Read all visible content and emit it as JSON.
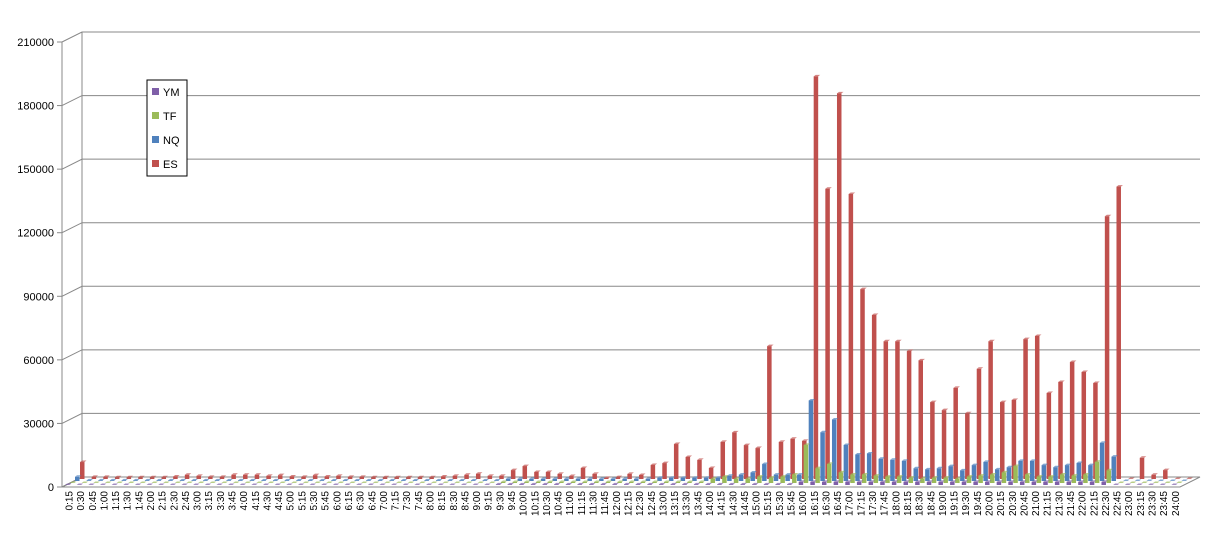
{
  "chart_data": {
    "type": "bar",
    "categories": [
      "0:15",
      "0:30",
      "0:45",
      "1:00",
      "1:15",
      "1:30",
      "1:45",
      "2:00",
      "2:15",
      "2:30",
      "2:45",
      "3:00",
      "3:15",
      "3:30",
      "3:45",
      "4:00",
      "4:15",
      "4:30",
      "4:45",
      "5:00",
      "5:15",
      "5:30",
      "5:45",
      "6:00",
      "6:15",
      "6:30",
      "6:45",
      "7:00",
      "7:15",
      "7:30",
      "7:45",
      "8:00",
      "8:15",
      "8:30",
      "8:45",
      "9:00",
      "9:15",
      "9:30",
      "9:45",
      "10:00",
      "10:15",
      "10:30",
      "10:45",
      "11:00",
      "11:15",
      "11:30",
      "11:45",
      "12:00",
      "12:15",
      "12:30",
      "12:45",
      "13:00",
      "13:15",
      "13:30",
      "13:45",
      "14:00",
      "14:15",
      "14:30",
      "14:45",
      "15:00",
      "15:15",
      "15:30",
      "15:45",
      "16:00",
      "16:15",
      "16:30",
      "16:45",
      "17:00",
      "17:15",
      "17:30",
      "17:45",
      "18:00",
      "18:15",
      "18:30",
      "18:45",
      "19:00",
      "19:15",
      "19:30",
      "19:45",
      "20:00",
      "20:15",
      "20:30",
      "20:45",
      "21:00",
      "21:15",
      "21:30",
      "21:45",
      "22:00",
      "22:15",
      "22:30",
      "22:45",
      "23:00",
      "23:15",
      "23:30",
      "23:45",
      "24:00"
    ],
    "series": [
      {
        "name": "YM",
        "color": "#7f5fa8",
        "values": [
          0,
          0,
          0,
          0,
          0,
          0,
          0,
          0,
          0,
          0,
          0,
          0,
          0,
          0,
          0,
          0,
          0,
          0,
          0,
          0,
          0,
          0,
          0,
          0,
          0,
          0,
          0,
          0,
          0,
          0,
          0,
          0,
          0,
          0,
          0,
          0,
          0,
          300,
          300,
          300,
          300,
          300,
          300,
          300,
          300,
          300,
          300,
          300,
          300,
          300,
          300,
          300,
          300,
          300,
          300,
          300,
          300,
          300,
          300,
          300,
          300,
          300,
          300,
          1500,
          1500,
          1500,
          1500,
          1500,
          1500,
          1500,
          1500,
          1500,
          1500,
          1500,
          1500,
          1500,
          1500,
          1500,
          1500,
          1500,
          1500,
          1500,
          1500,
          1500,
          1500,
          1500,
          1500,
          1500,
          1500,
          1500,
          0,
          0,
          0,
          0,
          0,
          0
        ]
      },
      {
        "name": "TF",
        "color": "#9bbb59",
        "values": [
          0,
          0,
          0,
          0,
          0,
          0,
          0,
          0,
          0,
          0,
          0,
          0,
          0,
          0,
          0,
          0,
          0,
          0,
          0,
          0,
          0,
          0,
          0,
          0,
          0,
          0,
          0,
          0,
          0,
          0,
          0,
          0,
          0,
          0,
          0,
          0,
          0,
          500,
          500,
          500,
          500,
          500,
          500,
          500,
          500,
          500,
          500,
          500,
          500,
          500,
          500,
          500,
          500,
          500,
          500,
          2000,
          3000,
          2000,
          2000,
          3000,
          2500,
          3000,
          4000,
          18000,
          7000,
          9000,
          5000,
          4000,
          4000,
          3500,
          3000,
          3000,
          2500,
          2000,
          2500,
          2500,
          2000,
          3000,
          3500,
          4000,
          5000,
          8000,
          4000,
          3000,
          3000,
          4000,
          3500,
          4000,
          10000,
          6000,
          0,
          0,
          0,
          0,
          0,
          0
        ]
      },
      {
        "name": "NQ",
        "color": "#4f81bd",
        "values": [
          2000,
          300,
          300,
          300,
          300,
          300,
          300,
          300,
          300,
          300,
          300,
          300,
          300,
          300,
          300,
          300,
          300,
          300,
          300,
          300,
          300,
          300,
          300,
          300,
          300,
          300,
          300,
          300,
          300,
          300,
          300,
          300,
          300,
          300,
          300,
          300,
          300,
          1000,
          1000,
          1000,
          1000,
          1000,
          1000,
          1000,
          1000,
          1000,
          1000,
          1000,
          1000,
          1000,
          1500,
          1500,
          1500,
          1500,
          1500,
          1500,
          2500,
          3000,
          4000,
          8000,
          3000,
          3000,
          3000,
          38000,
          23000,
          29000,
          17000,
          12500,
          13000,
          10500,
          10000,
          9500,
          6000,
          5500,
          6000,
          7000,
          5000,
          7500,
          9000,
          5500,
          6500,
          9500,
          9500,
          7500,
          6500,
          7500,
          8500,
          7500,
          18000,
          11500,
          0,
          0,
          0,
          0,
          0,
          0
        ]
      },
      {
        "name": "ES",
        "color": "#c0504d",
        "values": [
          8000,
          1000,
          1000,
          800,
          800,
          800,
          800,
          800,
          1200,
          2000,
          1500,
          1000,
          1000,
          2000,
          2000,
          2000,
          1500,
          1800,
          1200,
          1000,
          1800,
          1200,
          1500,
          1000,
          1000,
          800,
          800,
          800,
          800,
          800,
          800,
          1200,
          1500,
          2000,
          2500,
          1500,
          1500,
          4200,
          6100,
          3300,
          3300,
          2400,
          1400,
          5200,
          2400,
          500,
          900,
          2400,
          1900,
          6600,
          7500,
          16500,
          10400,
          9000,
          5200,
          17500,
          22000,
          16000,
          14600,
          62700,
          17500,
          19000,
          18000,
          190000,
          137000,
          182000,
          134500,
          89600,
          77400,
          65000,
          65000,
          60400,
          56000,
          36300,
          32500,
          43000,
          31000,
          52000,
          65000,
          36300,
          37300,
          66000,
          67500,
          40600,
          45800,
          55200,
          50500,
          45300,
          124000,
          138000,
          0,
          10000,
          2000,
          4200,
          0,
          0
        ]
      }
    ],
    "ylim": [
      0,
      210000
    ],
    "yticks": [
      0,
      30000,
      60000,
      90000,
      120000,
      150000,
      180000,
      210000
    ],
    "grid": true,
    "legend_position": "upper-left"
  }
}
